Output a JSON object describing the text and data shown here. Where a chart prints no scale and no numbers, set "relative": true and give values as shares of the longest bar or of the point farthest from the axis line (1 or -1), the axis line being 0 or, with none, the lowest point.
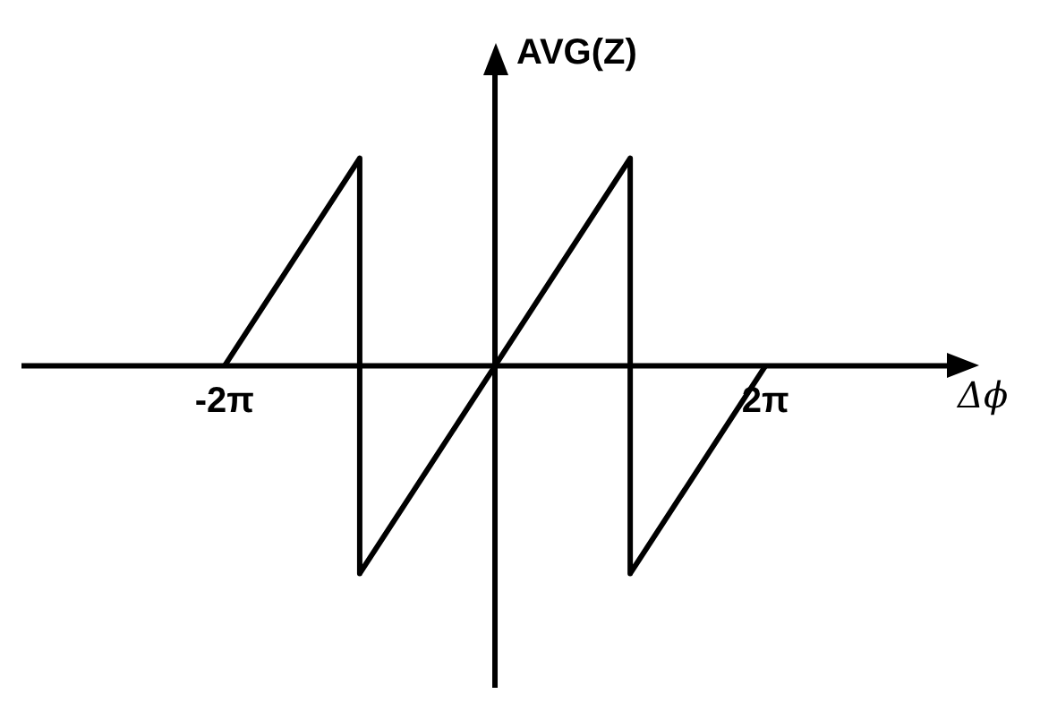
{
  "chart_data": {
    "type": "line",
    "xlabel": "Δϕ",
    "ylabel": "AVG(Z)",
    "relative": true,
    "x": [
      -6.283,
      -3.142,
      -3.142,
      3.142,
      3.142,
      6.283
    ],
    "series": [
      {
        "color": "#000000",
        "values": [
          0,
          1,
          -1,
          1,
          -1,
          0
        ]
      }
    ],
    "xlim": [
      -11,
      10.5
    ],
    "xticks": [
      {
        "value": -6.283,
        "label": "-2π"
      },
      {
        "value": 6.283,
        "label": "2π"
      }
    ],
    "marker": "none",
    "line_style": "solid",
    "grid": false,
    "legend": false,
    "tick_labels": "x"
  }
}
